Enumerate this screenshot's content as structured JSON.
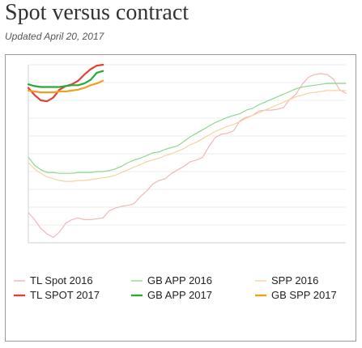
{
  "header": {
    "title": "Spot versus contract",
    "subtitle": "Updated April 20, 2017"
  },
  "colors": {
    "tl_spot_2016": "#f0b7b7",
    "tl_spot_2017": "#e1403b",
    "gb_app_2016": "#8ed891",
    "gb_app_2017": "#2aa83a",
    "spp_2016": "#f7d2a0",
    "gb_spp_2017": "#f0a020",
    "grid": "#dcdcdc",
    "axis": "#c8c8c8"
  },
  "chart_data": {
    "type": "line",
    "title": "",
    "xlabel": "",
    "ylabel": "",
    "ylim": [
      0,
      10
    ],
    "ytick_labels": [
      "",
      "",
      "",
      "",
      "",
      "",
      "",
      "",
      "",
      "",
      ""
    ],
    "x_tick_labels": [
      "",
      "",
      "",
      "",
      "",
      "",
      "",
      "",
      "",
      "",
      "",
      "",
      "",
      "",
      "",
      "",
      "",
      "",
      "",
      "",
      "",
      "",
      "",
      "",
      "",
      "",
      "",
      "",
      "",
      "",
      "",
      "",
      "",
      "",
      "",
      "",
      "",
      "",
      "",
      "",
      "",
      "",
      "",
      "",
      "",
      "",
      "",
      "",
      "",
      "",
      "",
      ""
    ],
    "week_count": 52,
    "grid": true,
    "legend_position": "bottom",
    "series": [
      {
        "name": "TL Spot 2016",
        "color_key": "tl_spot_2016",
        "stroke_width": 1.2,
        "values": [
          1.7,
          1.3,
          0.8,
          0.5,
          0.3,
          0.6,
          1.1,
          1.3,
          1.4,
          1.3,
          1.3,
          1.35,
          1.4,
          1.8,
          1.95,
          2.05,
          2.1,
          2.2,
          2.6,
          2.9,
          3.3,
          3.5,
          3.6,
          3.9,
          4.1,
          4.3,
          4.55,
          4.65,
          4.8,
          5.4,
          5.9,
          6.1,
          6.15,
          6.3,
          6.85,
          7.05,
          7.15,
          7.4,
          7.45,
          7.45,
          7.5,
          7.6,
          8.05,
          8.35,
          8.9,
          9.3,
          9.45,
          9.5,
          9.45,
          9.2,
          8.6,
          8.4
        ]
      },
      {
        "name": "GB APP 2016",
        "color_key": "gb_app_2016",
        "stroke_width": 1.2,
        "values": [
          4.8,
          4.35,
          4.1,
          3.95,
          3.95,
          3.9,
          3.9,
          3.9,
          3.95,
          3.95,
          3.95,
          4.0,
          4.0,
          4.05,
          4.15,
          4.3,
          4.5,
          4.65,
          4.75,
          4.9,
          5.05,
          5.1,
          5.25,
          5.35,
          5.45,
          5.7,
          5.95,
          6.15,
          6.35,
          6.55,
          6.75,
          6.9,
          7.05,
          7.15,
          7.25,
          7.45,
          7.55,
          7.75,
          7.9,
          8.05,
          8.2,
          8.35,
          8.5,
          8.65,
          8.75,
          8.8,
          8.85,
          8.9,
          8.95,
          8.95,
          8.95,
          8.95
        ]
      },
      {
        "name": "SPP 2016",
        "color_key": "spp_2016",
        "stroke_width": 1.2,
        "values": [
          4.5,
          4.15,
          3.9,
          3.7,
          3.6,
          3.5,
          3.45,
          3.45,
          3.5,
          3.5,
          3.55,
          3.6,
          3.65,
          3.7,
          3.8,
          3.95,
          4.1,
          4.25,
          4.4,
          4.55,
          4.65,
          4.75,
          4.9,
          5.0,
          5.15,
          5.3,
          5.5,
          5.65,
          5.85,
          6.05,
          6.25,
          6.4,
          6.55,
          6.65,
          6.8,
          7.0,
          7.15,
          7.3,
          7.45,
          7.6,
          7.75,
          7.9,
          8.05,
          8.2,
          8.3,
          8.4,
          8.45,
          8.5,
          8.55,
          8.55,
          8.55,
          8.55
        ]
      },
      {
        "name": "TL SPOT 2017",
        "color_key": "tl_spot_2017",
        "stroke_width": 2.2,
        "values": [
          8.7,
          8.3,
          8.0,
          7.95,
          8.15,
          8.6,
          8.8,
          8.9,
          9.1,
          9.45,
          9.75,
          9.95,
          10.0
        ]
      },
      {
        "name": "GB APP 2017",
        "color_key": "gb_app_2017",
        "stroke_width": 2.2,
        "values": [
          8.9,
          8.8,
          8.75,
          8.75,
          8.75,
          8.75,
          8.8,
          8.85,
          8.85,
          8.95,
          9.15,
          9.55,
          9.65
        ]
      },
      {
        "name": "GB SPP 2017",
        "color_key": "gb_spp_2017",
        "stroke_width": 2.2,
        "values": [
          8.55,
          8.5,
          8.45,
          8.45,
          8.45,
          8.5,
          8.5,
          8.55,
          8.6,
          8.7,
          8.85,
          8.95,
          9.1
        ]
      }
    ],
    "legend": [
      {
        "label": "TL Spot 2016",
        "color_key": "tl_spot_2016"
      },
      {
        "label": "GB APP 2016",
        "color_key": "gb_app_2016"
      },
      {
        "label": "SPP 2016",
        "color_key": "spp_2016"
      },
      {
        "label": "TL SPOT 2017",
        "color_key": "tl_spot_2017"
      },
      {
        "label": "GB APP 2017",
        "color_key": "gb_app_2017"
      },
      {
        "label": "GB SPP 2017",
        "color_key": "gb_spp_2017"
      }
    ]
  }
}
